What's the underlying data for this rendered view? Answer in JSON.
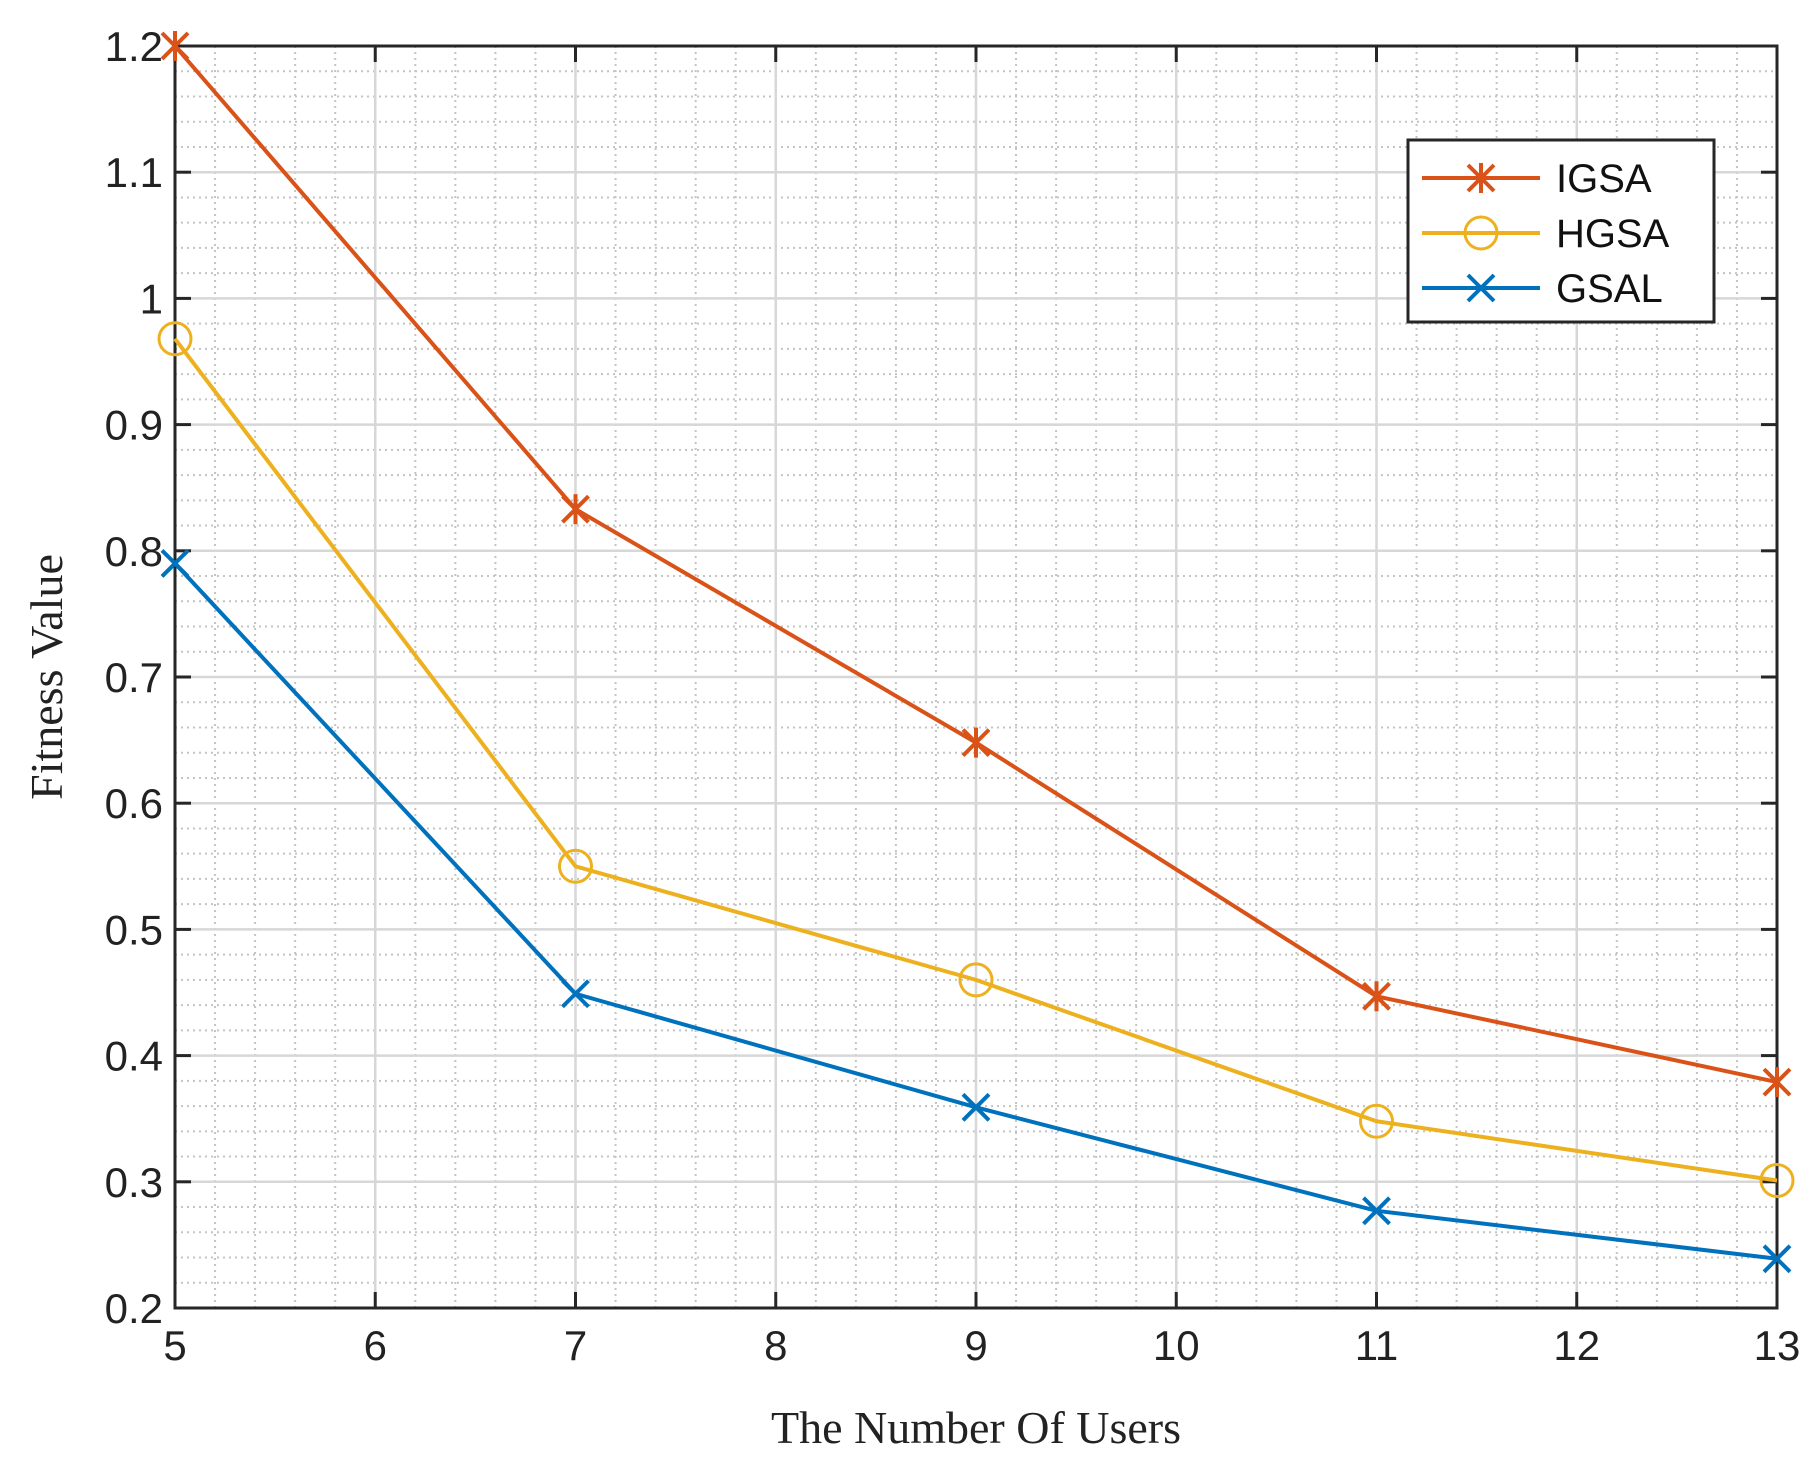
{
  "chart_data": {
    "type": "line",
    "title": "",
    "xlabel": "The Number Of Users",
    "ylabel": "Fitness Value",
    "xlim": [
      5,
      13
    ],
    "ylim": [
      0.2,
      1.2
    ],
    "xticks": [
      5,
      6,
      7,
      8,
      9,
      10,
      11,
      12,
      13
    ],
    "yticks": [
      0.2,
      0.3,
      0.4,
      0.5,
      0.6,
      0.7,
      0.8,
      0.9,
      1,
      1.1,
      1.2
    ],
    "xtick_labels": [
      "5",
      "6",
      "7",
      "8",
      "9",
      "10",
      "11",
      "12",
      "13"
    ],
    "ytick_labels": [
      "0.2",
      "0.3",
      "0.4",
      "0.5",
      "0.6",
      "0.7",
      "0.8",
      "0.9",
      "1",
      "1.1",
      "1.2"
    ],
    "grid": true,
    "minor_grid": true,
    "legend_position": "top-right",
    "x": [
      5,
      7,
      9,
      11,
      13
    ],
    "series": [
      {
        "name": "IGSA",
        "color": "#D95319",
        "marker": "asterisk",
        "values": [
          1.2,
          0.833,
          0.648,
          0.447,
          0.379
        ]
      },
      {
        "name": "HGSA",
        "color": "#EDB120",
        "marker": "circle",
        "values": [
          0.968,
          0.55,
          0.46,
          0.348,
          0.301
        ]
      },
      {
        "name": "GSAL",
        "color": "#0072BD",
        "marker": "x",
        "values": [
          0.79,
          0.449,
          0.359,
          0.277,
          0.239
        ]
      }
    ]
  }
}
